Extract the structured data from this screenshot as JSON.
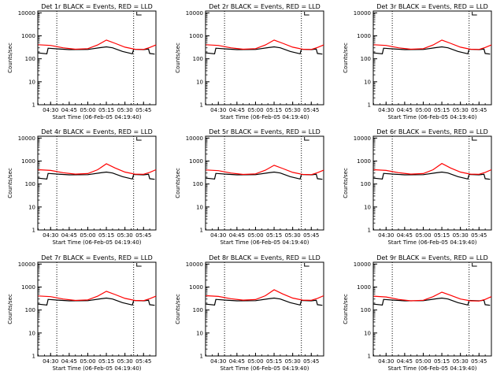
{
  "chart_data": [
    {
      "type": "line",
      "title": "Det 1r BLACK = Events, RED = LLD",
      "xlabel": "Start Time (06-Feb-05 04:19:40)",
      "ylabel": "Counts/sec",
      "x_ticks": [
        "04:30",
        "04:45",
        "05:00",
        "05:15",
        "05:30",
        "05:45"
      ],
      "y_ticks": [
        "1",
        "10",
        "100",
        "1000",
        "10000"
      ],
      "xlim": [
        "04:19:40",
        "05:55"
      ],
      "ylim": [
        1,
        12000
      ],
      "y_scale": "log",
      "vlines": [
        "04:35",
        "05:37"
      ],
      "series": [
        {
          "color": "#000000",
          "x": [
            "04:20",
            "04:27",
            "04:28",
            "04:36",
            "04:45",
            "05:00",
            "05:10",
            "05:15",
            "05:20",
            "05:28",
            "05:36",
            "05:37",
            "05:45",
            "05:49",
            "05:50",
            "05:54"
          ],
          "y": [
            180,
            165,
            290,
            270,
            250,
            255,
            305,
            330,
            300,
            210,
            165,
            260,
            250,
            265,
            170,
            160
          ]
        },
        {
          "color": "#ff0000",
          "x": [
            "04:20",
            "04:30",
            "04:40",
            "04:50",
            "05:00",
            "05:08",
            "05:15",
            "05:22",
            "05:30",
            "05:38",
            "05:45",
            "05:50",
            "05:55"
          ],
          "y": [
            410,
            380,
            300,
            260,
            275,
            400,
            650,
            470,
            320,
            260,
            255,
            310,
            400
          ]
        }
      ]
    },
    {
      "type": "line",
      "title": "Det 2r BLACK = Events, RED = LLD",
      "xlabel": "Start Time (06-Feb-05 04:19:40)",
      "ylabel": "Counts/sec",
      "x_ticks": [
        "04:30",
        "04:45",
        "05:00",
        "05:15",
        "05:30",
        "05:45"
      ],
      "y_ticks": [
        "1",
        "10",
        "100",
        "1000",
        "10000"
      ],
      "xlim": [
        "04:19:40",
        "05:55"
      ],
      "ylim": [
        1,
        12000
      ],
      "y_scale": "log",
      "vlines": [
        "04:35",
        "05:37"
      ],
      "series": [
        {
          "color": "#000000",
          "x": [
            "04:20",
            "04:27",
            "04:28",
            "04:36",
            "04:45",
            "05:00",
            "05:10",
            "05:15",
            "05:20",
            "05:28",
            "05:36",
            "05:37",
            "05:45",
            "05:49",
            "05:50",
            "05:54"
          ],
          "y": [
            180,
            165,
            290,
            270,
            250,
            255,
            305,
            330,
            300,
            210,
            165,
            260,
            250,
            265,
            170,
            160
          ]
        },
        {
          "color": "#ff0000",
          "x": [
            "04:20",
            "04:30",
            "04:40",
            "04:50",
            "05:00",
            "05:08",
            "05:15",
            "05:22",
            "05:30",
            "05:38",
            "05:45",
            "05:50",
            "05:55"
          ],
          "y": [
            410,
            380,
            300,
            260,
            275,
            400,
            650,
            470,
            320,
            260,
            255,
            310,
            400
          ]
        }
      ]
    },
    {
      "type": "line",
      "title": "Det 3r BLACK = Events, RED = LLD",
      "xlabel": "Start Time (06-Feb-05 04:19:40)",
      "ylabel": "Counts/sec",
      "x_ticks": [
        "04:30",
        "04:45",
        "05:00",
        "05:15",
        "05:30",
        "05:45"
      ],
      "y_ticks": [
        "1",
        "10",
        "100",
        "1000",
        "10000"
      ],
      "xlim": [
        "04:19:40",
        "05:55"
      ],
      "ylim": [
        1,
        12000
      ],
      "y_scale": "log",
      "vlines": [
        "04:35",
        "05:37"
      ],
      "series": [
        {
          "color": "#000000",
          "x": [
            "04:20",
            "04:27",
            "04:28",
            "04:36",
            "04:45",
            "05:00",
            "05:10",
            "05:15",
            "05:20",
            "05:28",
            "05:36",
            "05:37",
            "05:45",
            "05:49",
            "05:50",
            "05:54"
          ],
          "y": [
            180,
            165,
            290,
            270,
            250,
            255,
            305,
            330,
            300,
            210,
            165,
            260,
            250,
            265,
            170,
            160
          ]
        },
        {
          "color": "#ff0000",
          "x": [
            "04:20",
            "04:30",
            "04:40",
            "04:50",
            "05:00",
            "05:08",
            "05:15",
            "05:22",
            "05:30",
            "05:38",
            "05:45",
            "05:50",
            "05:55"
          ],
          "y": [
            410,
            380,
            300,
            260,
            275,
            400,
            650,
            470,
            320,
            260,
            255,
            310,
            400
          ]
        }
      ]
    },
    {
      "type": "line",
      "title": "Det 4r BLACK = Events, RED = LLD",
      "xlabel": "Start Time (06-Feb-05 04:19:40)",
      "ylabel": "Counts/sec",
      "x_ticks": [
        "04:30",
        "04:45",
        "05:00",
        "05:15",
        "05:30",
        "05:45"
      ],
      "y_ticks": [
        "1",
        "10",
        "100",
        "1000",
        "10000"
      ],
      "xlim": [
        "04:19:40",
        "05:55"
      ],
      "ylim": [
        1,
        12000
      ],
      "y_scale": "log",
      "vlines": [
        "04:35",
        "05:37"
      ],
      "series": [
        {
          "color": "#000000",
          "x": [
            "04:20",
            "04:27",
            "04:28",
            "04:36",
            "04:45",
            "05:00",
            "05:10",
            "05:15",
            "05:20",
            "05:28",
            "05:36",
            "05:37",
            "05:45",
            "05:49",
            "05:50",
            "05:54"
          ],
          "y": [
            180,
            165,
            290,
            270,
            250,
            255,
            305,
            330,
            300,
            210,
            165,
            260,
            250,
            265,
            170,
            160
          ]
        },
        {
          "color": "#ff0000",
          "x": [
            "04:20",
            "04:30",
            "04:40",
            "04:50",
            "05:00",
            "05:08",
            "05:15",
            "05:22",
            "05:30",
            "05:38",
            "05:45",
            "05:50",
            "05:55"
          ],
          "y": [
            420,
            390,
            310,
            270,
            285,
            420,
            760,
            500,
            330,
            270,
            265,
            320,
            420
          ]
        }
      ]
    },
    {
      "type": "line",
      "title": "Det 5r BLACK = Events, RED = LLD",
      "xlabel": "Start Time (06-Feb-05 04:19:40)",
      "ylabel": "Counts/sec",
      "x_ticks": [
        "04:30",
        "04:45",
        "05:00",
        "05:15",
        "05:30",
        "05:45"
      ],
      "y_ticks": [
        "1",
        "10",
        "100",
        "1000",
        "10000"
      ],
      "xlim": [
        "04:19:40",
        "05:55"
      ],
      "ylim": [
        1,
        12000
      ],
      "y_scale": "log",
      "vlines": [
        "04:35",
        "05:37"
      ],
      "series": [
        {
          "color": "#000000",
          "x": [
            "04:20",
            "04:27",
            "04:28",
            "04:36",
            "04:45",
            "05:00",
            "05:10",
            "05:15",
            "05:20",
            "05:28",
            "05:36",
            "05:37",
            "05:45",
            "05:49",
            "05:50",
            "05:54"
          ],
          "y": [
            180,
            165,
            290,
            270,
            250,
            255,
            305,
            330,
            300,
            210,
            165,
            260,
            250,
            265,
            170,
            160
          ]
        },
        {
          "color": "#ff0000",
          "x": [
            "04:20",
            "04:30",
            "04:40",
            "04:50",
            "05:00",
            "05:08",
            "05:15",
            "05:22",
            "05:30",
            "05:38",
            "05:45",
            "05:50",
            "05:55"
          ],
          "y": [
            410,
            380,
            300,
            260,
            275,
            400,
            650,
            470,
            320,
            260,
            255,
            310,
            400
          ]
        }
      ]
    },
    {
      "type": "line",
      "title": "Det 6r BLACK = Events, RED = LLD",
      "xlabel": "Start Time (06-Feb-05 04:19:40)",
      "ylabel": "Counts/sec",
      "x_ticks": [
        "04:30",
        "04:45",
        "05:00",
        "05:15",
        "05:30",
        "05:45"
      ],
      "y_ticks": [
        "1",
        "10",
        "100",
        "1000",
        "10000"
      ],
      "xlim": [
        "04:19:40",
        "05:55"
      ],
      "ylim": [
        1,
        12000
      ],
      "y_scale": "log",
      "vlines": [
        "04:35",
        "05:37"
      ],
      "series": [
        {
          "color": "#000000",
          "x": [
            "04:20",
            "04:27",
            "04:28",
            "04:36",
            "04:45",
            "05:00",
            "05:10",
            "05:15",
            "05:20",
            "05:28",
            "05:36",
            "05:37",
            "05:45",
            "05:49",
            "05:50",
            "05:54"
          ],
          "y": [
            180,
            165,
            290,
            270,
            250,
            255,
            305,
            330,
            300,
            210,
            165,
            260,
            250,
            265,
            170,
            160
          ]
        },
        {
          "color": "#ff0000",
          "x": [
            "04:20",
            "04:30",
            "04:40",
            "04:50",
            "05:00",
            "05:08",
            "05:15",
            "05:22",
            "05:30",
            "05:38",
            "05:45",
            "05:50",
            "05:55"
          ],
          "y": [
            420,
            390,
            310,
            270,
            285,
            420,
            780,
            500,
            330,
            270,
            265,
            320,
            420
          ]
        }
      ]
    },
    {
      "type": "line",
      "title": "Det 7r BLACK = Events, RED = LLD",
      "xlabel": "Start Time (06-Feb-05 04:19:40)",
      "ylabel": "Counts/sec",
      "x_ticks": [
        "04:30",
        "04:45",
        "05:00",
        "05:15",
        "05:30",
        "05:45"
      ],
      "y_ticks": [
        "1",
        "10",
        "100",
        "1000",
        "10000"
      ],
      "xlim": [
        "04:19:40",
        "05:55"
      ],
      "ylim": [
        1,
        12000
      ],
      "y_scale": "log",
      "vlines": [
        "04:35",
        "05:37"
      ],
      "series": [
        {
          "color": "#000000",
          "x": [
            "04:20",
            "04:27",
            "04:28",
            "04:36",
            "04:45",
            "05:00",
            "05:10",
            "05:15",
            "05:20",
            "05:28",
            "05:36",
            "05:37",
            "05:45",
            "05:49",
            "05:50",
            "05:54"
          ],
          "y": [
            180,
            165,
            290,
            270,
            250,
            255,
            305,
            330,
            300,
            210,
            165,
            260,
            250,
            265,
            170,
            160
          ]
        },
        {
          "color": "#ff0000",
          "x": [
            "04:20",
            "04:30",
            "04:40",
            "04:50",
            "05:00",
            "05:08",
            "05:15",
            "05:22",
            "05:30",
            "05:38",
            "05:45",
            "05:50",
            "05:55"
          ],
          "y": [
            410,
            380,
            300,
            260,
            275,
            400,
            650,
            470,
            320,
            260,
            255,
            310,
            400
          ]
        }
      ]
    },
    {
      "type": "line",
      "title": "Det 8r BLACK = Events, RED = LLD",
      "xlabel": "Start Time (06-Feb-05 04:19:40)",
      "ylabel": "Counts/sec",
      "x_ticks": [
        "04:30",
        "04:45",
        "05:00",
        "05:15",
        "05:30",
        "05:45"
      ],
      "y_ticks": [
        "1",
        "10",
        "100",
        "1000",
        "10000"
      ],
      "xlim": [
        "04:19:40",
        "05:55"
      ],
      "ylim": [
        1,
        12000
      ],
      "y_scale": "log",
      "vlines": [
        "04:35",
        "05:37"
      ],
      "series": [
        {
          "color": "#000000",
          "x": [
            "04:20",
            "04:27",
            "04:28",
            "04:36",
            "04:45",
            "05:00",
            "05:10",
            "05:15",
            "05:20",
            "05:28",
            "05:36",
            "05:37",
            "05:45",
            "05:49",
            "05:50",
            "05:54"
          ],
          "y": [
            180,
            165,
            290,
            270,
            250,
            255,
            305,
            330,
            300,
            210,
            165,
            260,
            250,
            265,
            170,
            160
          ]
        },
        {
          "color": "#ff0000",
          "x": [
            "04:20",
            "04:30",
            "04:40",
            "04:50",
            "05:00",
            "05:08",
            "05:15",
            "05:22",
            "05:30",
            "05:38",
            "05:45",
            "05:50",
            "05:55"
          ],
          "y": [
            420,
            390,
            310,
            270,
            285,
            420,
            760,
            500,
            330,
            270,
            265,
            320,
            420
          ]
        }
      ]
    },
    {
      "type": "line",
      "title": "Det 9r BLACK = Events, RED = LLD",
      "xlabel": "Start Time (06-Feb-05 04:19:40)",
      "ylabel": "Counts/sec",
      "x_ticks": [
        "04:30",
        "04:45",
        "05:00",
        "05:15",
        "05:30",
        "05:45"
      ],
      "y_ticks": [
        "1",
        "10",
        "100",
        "1000",
        "10000"
      ],
      "xlim": [
        "04:19:40",
        "05:55"
      ],
      "ylim": [
        1,
        12000
      ],
      "y_scale": "log",
      "vlines": [
        "04:35",
        "05:37"
      ],
      "series": [
        {
          "color": "#000000",
          "x": [
            "04:20",
            "04:27",
            "04:28",
            "04:36",
            "04:45",
            "05:00",
            "05:10",
            "05:15",
            "05:20",
            "05:28",
            "05:36",
            "05:37",
            "05:45",
            "05:49",
            "05:50",
            "05:54"
          ],
          "y": [
            180,
            165,
            290,
            270,
            250,
            255,
            305,
            330,
            300,
            210,
            165,
            260,
            250,
            265,
            170,
            160
          ]
        },
        {
          "color": "#ff0000",
          "x": [
            "04:20",
            "04:30",
            "04:40",
            "04:50",
            "05:00",
            "05:08",
            "05:15",
            "05:22",
            "05:30",
            "05:38",
            "05:45",
            "05:50",
            "05:55"
          ],
          "y": [
            400,
            370,
            290,
            250,
            265,
            380,
            600,
            440,
            300,
            250,
            245,
            290,
            380
          ]
        }
      ]
    }
  ]
}
